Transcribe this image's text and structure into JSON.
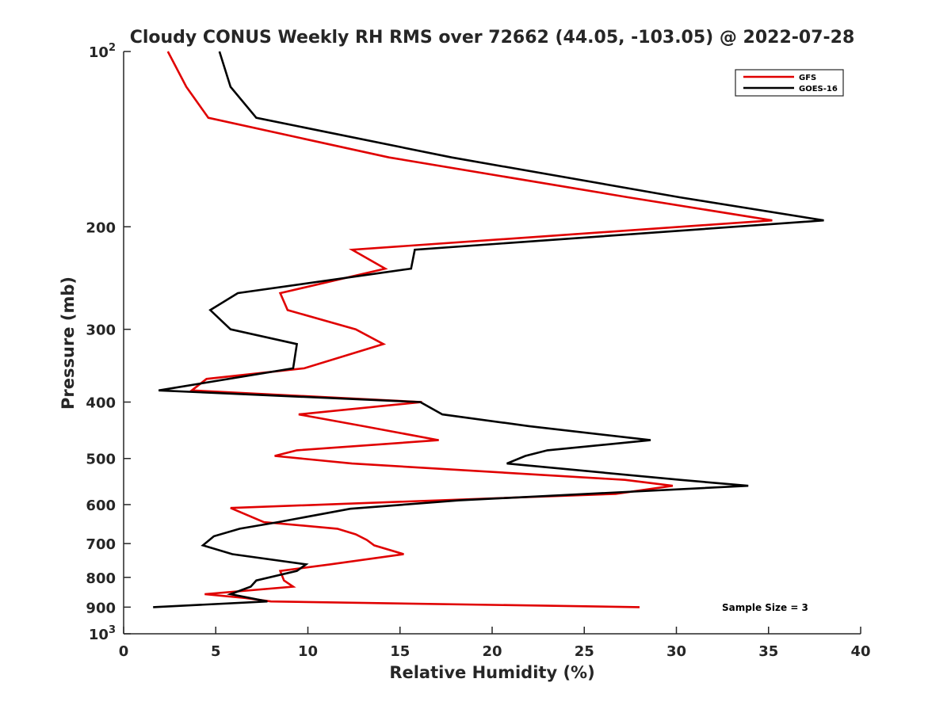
{
  "chart_data": {
    "type": "line",
    "title": "Cloudy CONUS Weekly RH RMS over 72662 (44.05, -103.05) @ 2022-07-28",
    "xlabel": "Relative Humidity (%)",
    "ylabel": "Pressure (mb)",
    "xlim": [
      0,
      40
    ],
    "ylim": [
      100,
      1000
    ],
    "yscale": "log",
    "y_reversed": true,
    "x_ticks": [
      "0",
      "5",
      "10",
      "15",
      "20",
      "25",
      "30",
      "35",
      "40"
    ],
    "y_ticks": [
      {
        "value": 100,
        "base": "10",
        "exp": "2"
      },
      {
        "value": 200,
        "label": "200"
      },
      {
        "value": 300,
        "label": "300"
      },
      {
        "value": 400,
        "label": "400"
      },
      {
        "value": 500,
        "label": "500"
      },
      {
        "value": 600,
        "label": "600"
      },
      {
        "value": 700,
        "label": "700"
      },
      {
        "value": 800,
        "label": "800"
      },
      {
        "value": 900,
        "label": "900"
      },
      {
        "value": 1000,
        "base": "10",
        "exp": "3"
      }
    ],
    "legend_position": "top-right",
    "grid": false,
    "annotation": "Sample Size = 3",
    "series": [
      {
        "name": "GFS",
        "color": "#e00000",
        "points": [
          [
            2.4,
            100
          ],
          [
            3.4,
            115
          ],
          [
            4.6,
            130
          ],
          [
            14.4,
            152
          ],
          [
            27.4,
            178
          ],
          [
            35.2,
            195
          ],
          [
            12.4,
            219
          ],
          [
            14.2,
            236
          ],
          [
            8.5,
            260
          ],
          [
            8.9,
            278
          ],
          [
            12.6,
            300
          ],
          [
            14.1,
            318
          ],
          [
            9.8,
            350
          ],
          [
            4.5,
            365
          ],
          [
            3.7,
            382
          ],
          [
            16.2,
            400
          ],
          [
            9.5,
            420
          ],
          [
            13.0,
            440
          ],
          [
            17.1,
            465
          ],
          [
            9.4,
            484
          ],
          [
            8.2,
            495
          ],
          [
            12.4,
            510
          ],
          [
            27.2,
            544
          ],
          [
            29.8,
            557
          ],
          [
            26.7,
            575
          ],
          [
            5.8,
            608
          ],
          [
            7.6,
            643
          ],
          [
            11.6,
            660
          ],
          [
            12.6,
            675
          ],
          [
            13.2,
            690
          ],
          [
            13.6,
            705
          ],
          [
            15.2,
            730
          ],
          [
            11.2,
            760
          ],
          [
            8.5,
            780
          ],
          [
            8.7,
            810
          ],
          [
            9.2,
            830
          ],
          [
            4.4,
            855
          ],
          [
            6.6,
            868
          ],
          [
            8.0,
            880
          ],
          [
            28.0,
            900
          ]
        ]
      },
      {
        "name": "GOES-16",
        "color": "#000000",
        "points": [
          [
            5.2,
            100
          ],
          [
            5.8,
            115
          ],
          [
            7.2,
            130
          ],
          [
            17.8,
            152
          ],
          [
            30.2,
            178
          ],
          [
            38.0,
            195
          ],
          [
            15.8,
            219
          ],
          [
            15.6,
            236
          ],
          [
            6.2,
            260
          ],
          [
            4.7,
            278
          ],
          [
            5.8,
            300
          ],
          [
            9.4,
            318
          ],
          [
            9.2,
            350
          ],
          [
            1.9,
            382
          ],
          [
            16.1,
            400
          ],
          [
            17.3,
            420
          ],
          [
            22.0,
            440
          ],
          [
            28.6,
            465
          ],
          [
            23.0,
            484
          ],
          [
            21.8,
            495
          ],
          [
            20.8,
            510
          ],
          [
            30.2,
            544
          ],
          [
            33.9,
            557
          ],
          [
            18.2,
            590
          ],
          [
            12.3,
            610
          ],
          [
            8.4,
            643
          ],
          [
            6.3,
            660
          ],
          [
            4.9,
            680
          ],
          [
            4.3,
            705
          ],
          [
            5.9,
            730
          ],
          [
            9.9,
            760
          ],
          [
            9.4,
            780
          ],
          [
            7.2,
            810
          ],
          [
            6.9,
            830
          ],
          [
            5.8,
            855
          ],
          [
            7.8,
            880
          ],
          [
            1.6,
            900
          ]
        ]
      }
    ]
  }
}
